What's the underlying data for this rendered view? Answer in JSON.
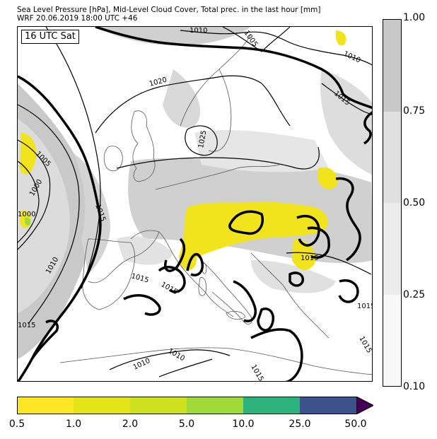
{
  "header": {
    "title_line1": "Sea Level Pressure [hPa], Mid-Level Cloud Cover, Total prec. in the last hour [mm]",
    "title_line2": "WRF 20.06.2019 18:00 UTC +46"
  },
  "map": {
    "time_badge": "16 UTC Sat",
    "isobar_labels": [
      "1010",
      "1005",
      "1010",
      "1015",
      "1020",
      "1025",
      "1005",
      "1000",
      "1000",
      "1015",
      "1010",
      "1015",
      "1015",
      "1015",
      "1015",
      "1015",
      "1010",
      "1010",
      "1015",
      "1015"
    ],
    "colors": {
      "land_outline": "#555555",
      "isobar": "#000000",
      "isobar_1015_bold": "#000000",
      "cloud_light": "#eeeeee",
      "cloud_mid": "#d9d9d9",
      "cloud_dark": "#c4c4c4"
    }
  },
  "cloud_legend": {
    "ticks": [
      "1.00",
      "0.75",
      "0.50",
      "0.25",
      "0.10"
    ],
    "colors_top_to_bottom": [
      "#c8c8c8",
      "#e0e0e0",
      "#ececec",
      "#f8f8f8"
    ]
  },
  "precip_legend": {
    "ticks": [
      "0.5",
      "1.0",
      "2.0",
      "5.0",
      "10.0",
      "25.0",
      "50.0"
    ],
    "colors": [
      "#fde725",
      "#e5e419",
      "#cde11d",
      "#a0da39",
      "#2db27d",
      "#3b528b",
      "#440154"
    ]
  }
}
